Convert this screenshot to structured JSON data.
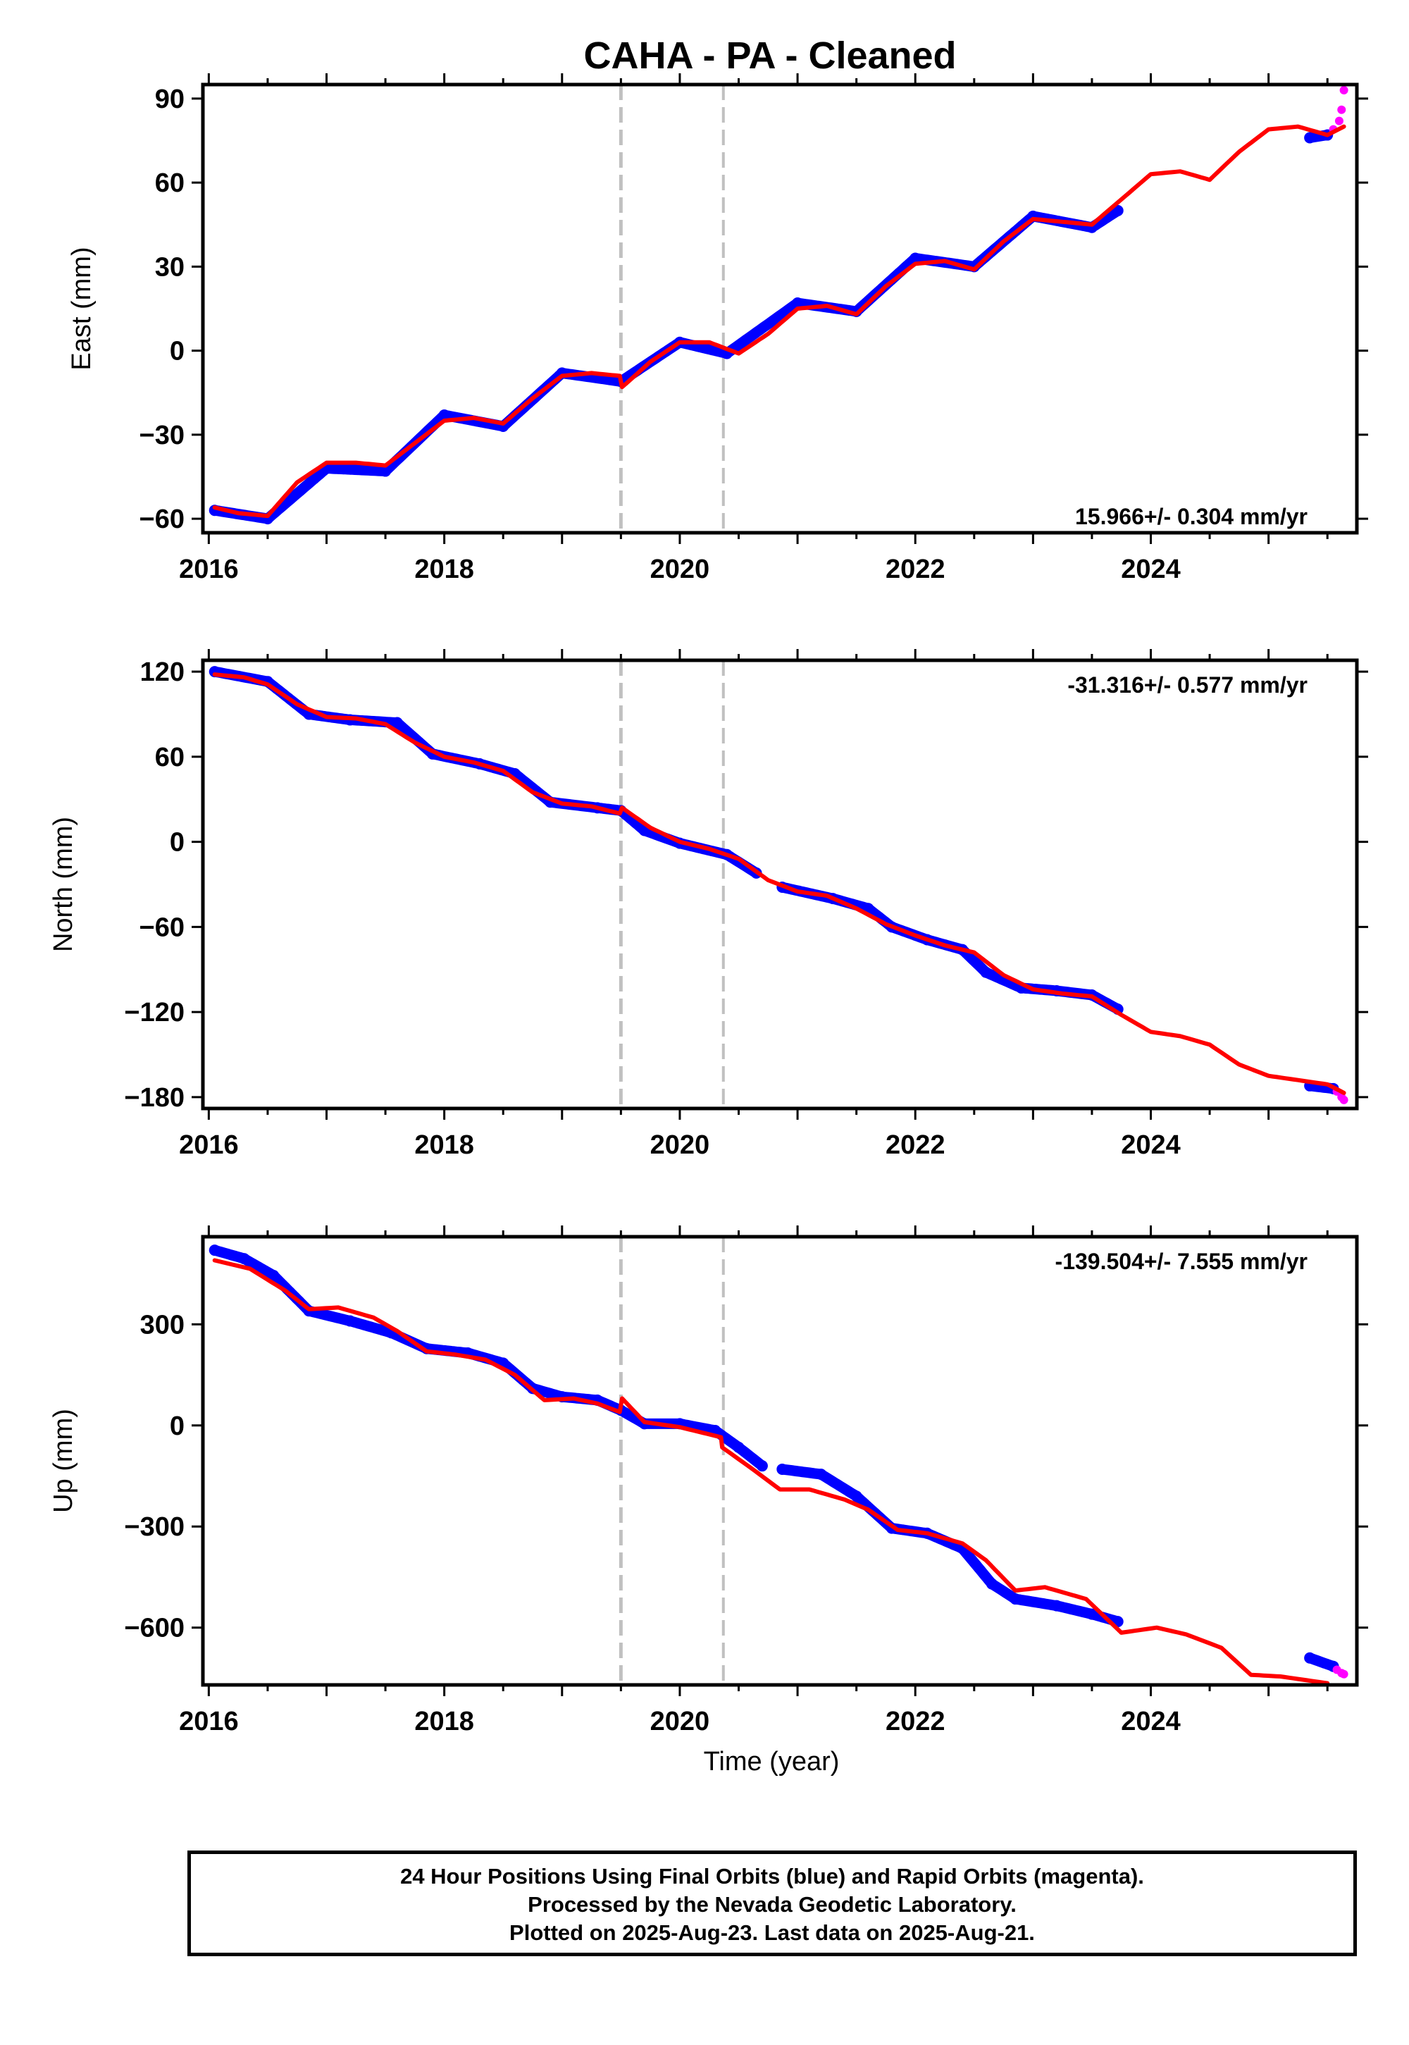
{
  "title": "CAHA  - PA - Cleaned",
  "xlabel": "Time (year)",
  "colors": {
    "final_orbits": "#0000ff",
    "rapid_orbits": "#ff00ff",
    "model": "#ff0000",
    "event_lines": "#c0c0c0"
  },
  "chart_data": [
    {
      "type": "scatter",
      "panel": "east",
      "ylabel": "East (mm)",
      "xlim": [
        2015.95,
        2025.75
      ],
      "ylim": [
        -65,
        95
      ],
      "xticks": [
        2016,
        2018,
        2020,
        2022,
        2024
      ],
      "yticks": [
        -60,
        -30,
        0,
        30,
        60,
        90
      ],
      "rate_annotation": "15.966+/- 0.304 mm/yr",
      "event_lines": [
        2019.5,
        2020.37
      ],
      "series": [
        {
          "color": "blue",
          "x": [
            2016.05,
            2016.5,
            2017.0,
            2017.5,
            2018.0,
            2018.5,
            2019.0,
            2019.5,
            2020.0,
            2020.4,
            2021.0,
            2021.5,
            2022.0,
            2022.5,
            2023.0,
            2023.5,
            2023.72
          ],
          "y": [
            -57,
            -60,
            -42,
            -43,
            -23,
            -27,
            -8,
            -11,
            3,
            -1,
            17,
            14,
            33,
            30,
            48,
            44,
            50
          ]
        },
        {
          "color": "blue",
          "x": [
            2025.35,
            2025.5
          ],
          "y": [
            76,
            77
          ]
        },
        {
          "color": "magenta",
          "x": [
            2025.55,
            2025.6,
            2025.62,
            2025.64
          ],
          "y": [
            79,
            82,
            86,
            93
          ]
        },
        {
          "color": "red",
          "x": [
            2016.05,
            2016.25,
            2016.5,
            2016.75,
            2017.0,
            2017.25,
            2017.5,
            2017.75,
            2018.0,
            2018.25,
            2018.5,
            2018.75,
            2019.0,
            2019.25,
            2019.49,
            2019.51,
            2019.75,
            2020.0,
            2020.25,
            2020.5,
            2020.75,
            2021.0,
            2021.25,
            2021.5,
            2021.75,
            2022.0,
            2022.25,
            2022.5,
            2022.75,
            2023.0,
            2023.25,
            2023.5,
            2023.75,
            2024.0,
            2024.25,
            2024.5,
            2024.75,
            2025.0,
            2025.25,
            2025.5,
            2025.64
          ],
          "y": [
            -56,
            -58,
            -59,
            -47,
            -40,
            -40,
            -41,
            -33,
            -25,
            -24,
            -26,
            -17,
            -9,
            -8,
            -9,
            -13,
            -4,
            3,
            3,
            -1,
            6,
            15,
            16,
            13,
            23,
            31,
            32,
            29,
            39,
            47,
            46,
            45,
            54,
            63,
            64,
            61,
            71,
            79,
            80,
            77,
            80
          ]
        }
      ]
    },
    {
      "type": "scatter",
      "panel": "north",
      "ylabel": "North (mm)",
      "xlim": [
        2015.95,
        2025.75
      ],
      "ylim": [
        -188,
        128
      ],
      "xticks": [
        2016,
        2018,
        2020,
        2022,
        2024
      ],
      "yticks": [
        -180,
        -120,
        -60,
        0,
        60,
        120
      ],
      "rate_annotation": "-31.316+/- 0.577 mm/yr",
      "event_lines": [
        2019.5,
        2020.37
      ],
      "series": [
        {
          "color": "blue",
          "x": [
            2016.05,
            2016.5,
            2016.85,
            2017.2,
            2017.6,
            2017.9,
            2018.3,
            2018.6,
            2018.9,
            2019.3,
            2019.5,
            2019.7,
            2020.0,
            2020.4,
            2020.65
          ],
          "y": [
            120,
            113,
            90,
            86,
            84,
            62,
            55,
            48,
            28,
            24,
            22,
            8,
            -1,
            -9,
            -22
          ]
        },
        {
          "color": "blue",
          "x": [
            2020.87,
            2021.3,
            2021.6,
            2021.8,
            2022.1,
            2022.4,
            2022.6,
            2022.9,
            2023.2,
            2023.5,
            2023.72
          ],
          "y": [
            -32,
            -40,
            -47,
            -60,
            -69,
            -76,
            -92,
            -103,
            -105,
            -108,
            -118
          ]
        },
        {
          "color": "blue",
          "x": [
            2025.35,
            2025.55
          ],
          "y": [
            -172,
            -174
          ]
        },
        {
          "color": "magenta",
          "x": [
            2025.58,
            2025.62,
            2025.64
          ],
          "y": [
            -176,
            -180,
            -182
          ]
        },
        {
          "color": "red",
          "x": [
            2016.05,
            2016.3,
            2016.5,
            2016.75,
            2017.0,
            2017.25,
            2017.5,
            2017.75,
            2018.0,
            2018.25,
            2018.5,
            2018.75,
            2019.0,
            2019.25,
            2019.49,
            2019.51,
            2019.75,
            2020.0,
            2020.25,
            2020.5,
            2020.75,
            2021.0,
            2021.25,
            2021.5,
            2021.75,
            2022.0,
            2022.25,
            2022.5,
            2022.75,
            2023.0,
            2023.25,
            2023.5,
            2023.75,
            2024.0,
            2024.25,
            2024.5,
            2024.75,
            2025.0,
            2025.25,
            2025.5,
            2025.64
          ],
          "y": [
            118,
            116,
            111,
            97,
            88,
            87,
            83,
            70,
            60,
            56,
            50,
            35,
            27,
            25,
            20,
            24,
            10,
            0,
            -5,
            -12,
            -27,
            -35,
            -38,
            -47,
            -58,
            -66,
            -73,
            -78,
            -94,
            -104,
            -107,
            -109,
            -122,
            -134,
            -137,
            -143,
            -157,
            -165,
            -168,
            -171,
            -177
          ]
        }
      ]
    },
    {
      "type": "scatter",
      "panel": "up",
      "ylabel": "Up (mm)",
      "xlim": [
        2015.95,
        2025.75
      ],
      "ylim": [
        -770,
        560
      ],
      "xticks": [
        2016,
        2018,
        2020,
        2022,
        2024
      ],
      "yticks": [
        -600,
        -300,
        0,
        300
      ],
      "rate_annotation": "-139.504+/- 7.555 mm/yr",
      "event_lines": [
        2019.5,
        2020.37
      ],
      "series": [
        {
          "color": "blue",
          "x": [
            2016.05,
            2016.3,
            2016.55,
            2016.85,
            2017.2,
            2017.55,
            2017.85,
            2018.2,
            2018.5,
            2018.75,
            2019.0,
            2019.3,
            2019.5,
            2019.7,
            2020.0,
            2020.3,
            2020.5,
            2020.7
          ],
          "y": [
            520,
            495,
            445,
            340,
            310,
            275,
            228,
            215,
            185,
            110,
            85,
            75,
            45,
            5,
            5,
            -15,
            -65,
            -120
          ]
        },
        {
          "color": "blue",
          "x": [
            2020.87,
            2021.2,
            2021.5,
            2021.8,
            2022.1,
            2022.4,
            2022.65,
            2022.85,
            2023.2,
            2023.5,
            2023.72
          ],
          "y": [
            -130,
            -145,
            -210,
            -305,
            -320,
            -365,
            -470,
            -515,
            -535,
            -560,
            -582
          ]
        },
        {
          "color": "blue",
          "x": [
            2025.35,
            2025.55
          ],
          "y": [
            -690,
            -715
          ]
        },
        {
          "color": "magenta",
          "x": [
            2025.58,
            2025.62,
            2025.64
          ],
          "y": [
            -725,
            -735,
            -738
          ]
        },
        {
          "color": "red",
          "x": [
            2016.05,
            2016.35,
            2016.65,
            2016.85,
            2017.1,
            2017.4,
            2017.6,
            2017.85,
            2018.1,
            2018.35,
            2018.6,
            2018.85,
            2019.1,
            2019.3,
            2019.49,
            2019.51,
            2019.7,
            2020.0,
            2020.35,
            2020.36,
            2020.6,
            2020.85,
            2021.1,
            2021.4,
            2021.6,
            2021.85,
            2022.1,
            2022.4,
            2022.6,
            2022.85,
            2023.1,
            2023.45,
            2023.75,
            2024.05,
            2024.3,
            2024.6,
            2024.85,
            2025.1,
            2025.4,
            2025.5
          ],
          "y": [
            490,
            465,
            400,
            345,
            350,
            320,
            280,
            220,
            210,
            195,
            150,
            75,
            80,
            65,
            40,
            80,
            10,
            -5,
            -35,
            -65,
            -125,
            -190,
            -190,
            -220,
            -250,
            -310,
            -320,
            -350,
            -400,
            -490,
            -480,
            -515,
            -615,
            -600,
            -620,
            -660,
            -740,
            -745,
            -760,
            -765
          ]
        }
      ]
    }
  ],
  "footer": {
    "line1": "24 Hour Positions Using Final Orbits (blue) and Rapid Orbits (magenta).",
    "line2": "Processed by the Nevada Geodetic Laboratory.",
    "line3": "Plotted on 2025-Aug-23. Last data on 2025-Aug-21."
  }
}
